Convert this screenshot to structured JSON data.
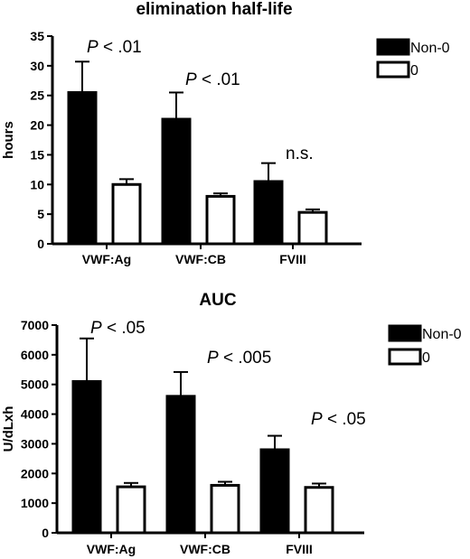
{
  "chart_data": [
    {
      "type": "bar",
      "title": "elimination half-life",
      "ylabel": "hours",
      "xlabel": "",
      "ylim": [
        0,
        35
      ],
      "yticks": [
        0,
        5,
        10,
        15,
        20,
        25,
        30,
        35
      ],
      "categories": [
        "VWF:Ag",
        "VWF:CB",
        "FVIII"
      ],
      "series": [
        {
          "name": "Non-0",
          "values": [
            25.5,
            21,
            10.5
          ],
          "errors": [
            5.2,
            4.5,
            3.1
          ],
          "color": "#000000"
        },
        {
          "name": "0",
          "values": [
            10,
            8,
            5.3
          ],
          "errors": [
            0.9,
            0.5,
            0.5
          ],
          "color": "#ffffff"
        }
      ],
      "annotations": [
        {
          "category": "VWF:Ag",
          "p": "P",
          "rest": " < .01"
        },
        {
          "category": "VWF:CB",
          "p": "P",
          "rest": " < .01"
        },
        {
          "category": "FVIII",
          "p": "",
          "rest": "n.s."
        }
      ],
      "legend": "top-right",
      "grid": false
    },
    {
      "type": "bar",
      "title": "AUC",
      "ylabel": "U/dLxh",
      "xlabel": "",
      "ylim": [
        0,
        7000
      ],
      "yticks": [
        0,
        1000,
        2000,
        3000,
        4000,
        5000,
        6000,
        7000
      ],
      "categories": [
        "VWF:Ag",
        "VWF:CB",
        "FVIII"
      ],
      "series": [
        {
          "name": "Non-0",
          "values": [
            5100,
            4600,
            2800
          ],
          "errors": [
            1450,
            820,
            470
          ],
          "color": "#000000"
        },
        {
          "name": "0",
          "values": [
            1550,
            1600,
            1530
          ],
          "errors": [
            130,
            120,
            130
          ],
          "color": "#ffffff"
        }
      ],
      "annotations": [
        {
          "category": "VWF:Ag",
          "p": "P",
          "rest": " < .05"
        },
        {
          "category": "VWF:CB",
          "p": "P",
          "rest": " < .005"
        },
        {
          "category": "FVIII",
          "p": "P",
          "rest": " < .05"
        }
      ],
      "legend": "top-right",
      "grid": false
    }
  ]
}
